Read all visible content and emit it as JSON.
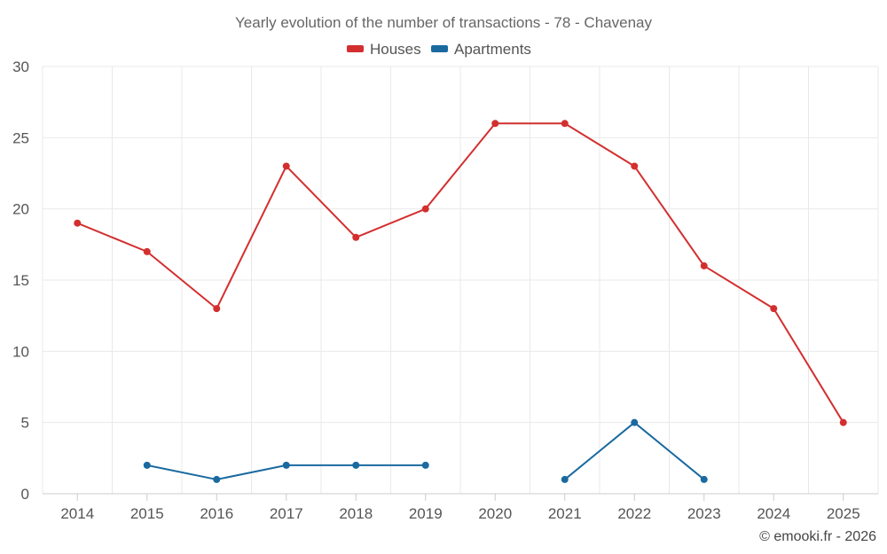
{
  "chart_data": {
    "type": "line",
    "title": "Yearly evolution of the number of transactions - 78 - Chavenay",
    "categories": [
      "2014",
      "2015",
      "2016",
      "2017",
      "2018",
      "2019",
      "2020",
      "2021",
      "2022",
      "2023",
      "2024",
      "2025"
    ],
    "series": [
      {
        "name": "Houses",
        "color": "#d32f2f",
        "values": [
          19,
          17,
          13,
          23,
          18,
          20,
          26,
          26,
          23,
          16,
          13,
          5
        ]
      },
      {
        "name": "Apartments",
        "color": "#1a6aa0",
        "values": [
          null,
          2,
          1,
          2,
          2,
          2,
          null,
          1,
          5,
          1,
          null,
          null
        ]
      }
    ],
    "ylim": [
      0,
      30
    ],
    "yticks": [
      0,
      5,
      10,
      15,
      20,
      25,
      30
    ],
    "grid": true,
    "legend": "top-center",
    "credit": "© emooki.fr - 2026"
  }
}
